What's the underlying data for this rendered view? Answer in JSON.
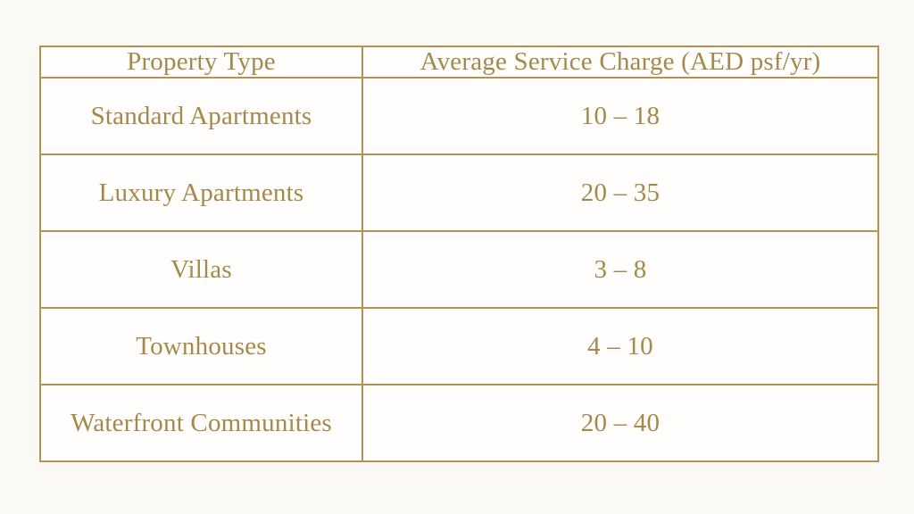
{
  "table": {
    "headers": [
      "Property Type",
      "Average Service Charge (AED psf/yr)"
    ],
    "rows": [
      {
        "property_type": "Standard Apartments",
        "service_charge": "10 – 18"
      },
      {
        "property_type": "Luxury Apartments",
        "service_charge": "20 – 35"
      },
      {
        "property_type": "Villas",
        "service_charge": "3 – 8"
      },
      {
        "property_type": "Townhouses",
        "service_charge": "4 – 10"
      },
      {
        "property_type": "Waterfront Communities",
        "service_charge": "20 – 40"
      }
    ]
  },
  "colors": {
    "accent_gold_border": "#b29354",
    "text_gold": "#a5894b",
    "page_background": "#faf9f6",
    "cell_background": "#fffefc"
  },
  "chart_data": {
    "type": "table",
    "columns": [
      "Property Type",
      "Average Service Charge (AED psf/yr)"
    ],
    "rows": [
      [
        "Standard Apartments",
        "10 – 18"
      ],
      [
        "Luxury Apartments",
        "20 – 35"
      ],
      [
        "Villas",
        "3 – 8"
      ],
      [
        "Townhouses",
        "4 – 10"
      ],
      [
        "Waterfront Communities",
        "20 – 40"
      ]
    ],
    "value_ranges_aed_psf_per_yr": {
      "Standard Apartments": [
        10,
        18
      ],
      "Luxury Apartments": [
        20,
        35
      ],
      "Villas": [
        3,
        8
      ],
      "Townhouses": [
        4,
        10
      ],
      "Waterfront Communities": [
        20,
        40
      ]
    }
  }
}
